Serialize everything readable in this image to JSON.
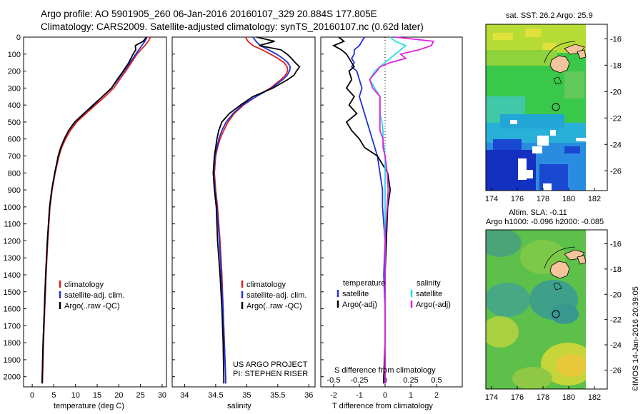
{
  "header": {
    "line1": "Argo profile: AO 5901905_260 06-Jan-2016 20160107_329 20.884S 177.805E",
    "line2": "Climatology: CARS2009. Satellite-adjusted climatology: synTS_20160107.nc (0.62d later)"
  },
  "colors": {
    "climatology": "#e02020",
    "satellite": "#2030d8",
    "argo": "#000000",
    "sat_salinity": "#20e0e0",
    "argo_adj_salinity": "#e020e0"
  },
  "y_axis": {
    "ticks": [
      0,
      100,
      200,
      300,
      400,
      500,
      600,
      700,
      800,
      900,
      1000,
      1100,
      1200,
      1300,
      1400,
      1500,
      1600,
      1700,
      1800,
      1900,
      2000
    ],
    "range": [
      0,
      2060
    ]
  },
  "chart_data": [
    {
      "id": "temperature",
      "type": "line",
      "xlabel": "temperature (deg C)",
      "xlim": [
        -2,
        31
      ],
      "xticks": [
        0,
        5,
        10,
        15,
        20,
        25,
        30
      ],
      "legend": [
        "climatology",
        "satellite-adj. clim.",
        "Argo(..raw -QC)"
      ],
      "depth": [
        0,
        25,
        50,
        75,
        100,
        150,
        200,
        250,
        300,
        350,
        400,
        450,
        500,
        550,
        600,
        650,
        700,
        800,
        900,
        1000,
        1200,
        1400,
        1600,
        1800,
        2000,
        2040
      ],
      "series": [
        {
          "name": "climatology",
          "values": [
            27.3,
            26.8,
            26.0,
            25.1,
            24.2,
            22.9,
            21.6,
            20.2,
            18.8,
            16.8,
            14.6,
            12.4,
            10.3,
            8.8,
            7.7,
            6.8,
            6.2,
            5.3,
            4.6,
            4.1,
            3.6,
            3.2,
            2.9,
            2.6,
            2.4,
            2.35
          ]
        },
        {
          "name": "satellite-adj. clim.",
          "values": [
            26.5,
            26.0,
            25.3,
            24.6,
            23.9,
            22.6,
            21.2,
            19.8,
            18.3,
            16.2,
            14.0,
            11.9,
            9.8,
            8.4,
            7.4,
            6.6,
            6.0,
            5.2,
            4.5,
            4.0,
            3.5,
            3.1,
            2.8,
            2.5,
            2.3,
            2.25
          ]
        },
        {
          "name": "Argo(..raw -QC)",
          "values": [
            26.4,
            25.6,
            23.8,
            23.9,
            23.3,
            22.3,
            21.0,
            19.6,
            18.3,
            16.2,
            14.2,
            12.0,
            9.9,
            8.4,
            7.4,
            6.6,
            6.0,
            5.2,
            4.5,
            4.0,
            3.5,
            3.1,
            2.8,
            2.5,
            2.3,
            2.25
          ]
        }
      ]
    },
    {
      "id": "salinity",
      "type": "line",
      "xlabel": "salinity",
      "xlim": [
        33.8,
        36.1
      ],
      "xticks": [
        34,
        34.5,
        35,
        35.5,
        36
      ],
      "legend": [
        "climatology",
        "satellite-adj. clim.",
        "Argo(..raw -QC)"
      ],
      "depth": [
        0,
        25,
        50,
        75,
        100,
        125,
        150,
        175,
        200,
        225,
        250,
        300,
        350,
        400,
        450,
        500,
        550,
        600,
        650,
        700,
        800,
        900,
        1000,
        1200,
        1400,
        1600,
        1800,
        2000,
        2040
      ],
      "series": [
        {
          "name": "climatology",
          "values": [
            34.98,
            35.02,
            35.1,
            35.25,
            35.38,
            35.5,
            35.6,
            35.65,
            35.66,
            35.62,
            35.55,
            35.38,
            35.15,
            34.95,
            34.8,
            34.7,
            34.63,
            34.57,
            34.53,
            34.5,
            34.48,
            34.5,
            34.53,
            34.57,
            34.6,
            34.62,
            34.64,
            34.66,
            34.66
          ]
        },
        {
          "name": "satellite-adj. clim.",
          "values": [
            35.1,
            35.15,
            35.22,
            35.35,
            35.48,
            35.58,
            35.66,
            35.7,
            35.69,
            35.65,
            35.58,
            35.4,
            35.15,
            34.93,
            34.78,
            34.67,
            34.6,
            34.55,
            34.52,
            34.49,
            34.47,
            34.49,
            34.52,
            34.56,
            34.59,
            34.62,
            34.64,
            34.66,
            34.66
          ]
        },
        {
          "name": "Argo(..raw -QC)",
          "values": [
            35.16,
            35.45,
            35.2,
            35.55,
            35.65,
            35.72,
            35.78,
            35.85,
            35.8,
            35.76,
            35.66,
            35.42,
            35.1,
            34.9,
            34.72,
            34.6,
            34.55,
            34.52,
            34.5,
            34.48,
            34.46,
            34.48,
            34.51,
            34.53,
            34.57,
            34.6,
            34.62,
            34.63,
            34.63
          ]
        }
      ]
    },
    {
      "id": "difference",
      "type": "line",
      "xlabel": "T difference from climatology",
      "xlabel_top": "S difference from climatology",
      "xlim": [
        -2.5,
        3.0
      ],
      "xticks": [
        -2,
        -1,
        0,
        1,
        2
      ],
      "xticks_s": [
        "-0.5",
        "-0.25",
        "0",
        "0.25",
        "0.5"
      ],
      "legend_temperature": {
        "title": "temperature",
        "items": [
          "satellite",
          "Argo(-adj)"
        ]
      },
      "legend_salinity": {
        "title": "salinity",
        "items": [
          "satellite",
          "Argo(-adj)"
        ]
      },
      "depth": [
        0,
        25,
        50,
        75,
        100,
        125,
        150,
        175,
        200,
        250,
        300,
        350,
        400,
        450,
        500,
        550,
        600,
        650,
        700,
        800,
        900,
        1000,
        1200,
        1400,
        1600,
        1800,
        2000,
        2040
      ],
      "series": [
        {
          "name": "temperature satellite",
          "values": [
            -0.8,
            -0.9,
            -1.0,
            -1.2,
            -1.2,
            -1.3,
            -1.2,
            -1.3,
            -1.1,
            -1.0,
            -0.9,
            -1.0,
            -0.9,
            -0.8,
            -0.7,
            -0.6,
            -0.5,
            -0.4,
            -0.3,
            -0.2,
            -0.1,
            -0.1,
            0.0,
            -0.05,
            0.0,
            0.0,
            -0.05,
            -0.05
          ]
        },
        {
          "name": "temperature Argo(-adj)",
          "values": [
            -1.8,
            -1.6,
            -2.0,
            -1.7,
            -1.5,
            -1.4,
            -1.3,
            -1.2,
            -1.4,
            -1.3,
            -1.5,
            -1.2,
            -1.4,
            -1.1,
            -1.5,
            -1.3,
            -1.0,
            -0.8,
            -0.3,
            0.1,
            0.2,
            0.1,
            0.05,
            0.0,
            0.0,
            0.0,
            -0.05,
            -0.05
          ]
        },
        {
          "name": "salinity satellite",
          "values": [
            0.05,
            0.1,
            0.2,
            0.15,
            0.1,
            0.05,
            0.0,
            -0.05,
            -0.1,
            -0.15,
            -0.1,
            -0.05,
            -0.05,
            -0.05,
            -0.03,
            -0.02,
            -0.02,
            -0.01,
            0.0,
            0.0,
            0.0,
            0.0,
            0.0,
            0.0,
            0.0,
            0.0,
            0.0,
            0.0
          ]
        },
        {
          "name": "salinity Argo(-adj)",
          "values": [
            0.1,
            0.47,
            0.45,
            0.33,
            0.15,
            0.2,
            0.05,
            -0.05,
            -0.08,
            -0.15,
            -0.12,
            -0.05,
            -0.05,
            -0.05,
            -0.05,
            -0.05,
            -0.02,
            -0.02,
            0.0,
            0.02,
            0.03,
            0.02,
            0.0,
            0.0,
            0.0,
            0.0,
            0.0,
            0.0
          ]
        }
      ]
    }
  ],
  "labels": {
    "project": "US ARGO PROJECT",
    "pi": "PI: STEPHEN RISER"
  },
  "maps": {
    "sst": {
      "title": "sat. SST: 26.2  Argo: 25.9",
      "lat_ticks": [
        "-16",
        "-18",
        "-20",
        "-22",
        "-24",
        "-26"
      ],
      "lon_ticks": [
        "174",
        "176",
        "178",
        "180",
        "182"
      ]
    },
    "sla": {
      "title1": "Altim. SLA: -0.11",
      "title2": "Argo h1000: -0.096 h2000: -0.085",
      "lat_ticks": [
        "-16",
        "-18",
        "-20",
        "-22",
        "-24",
        "-26"
      ],
      "lon_ticks": [
        "174",
        "176",
        "178",
        "180",
        "182"
      ]
    }
  },
  "stamp": "©IMOS 14-Jan-2016 20:39:05"
}
